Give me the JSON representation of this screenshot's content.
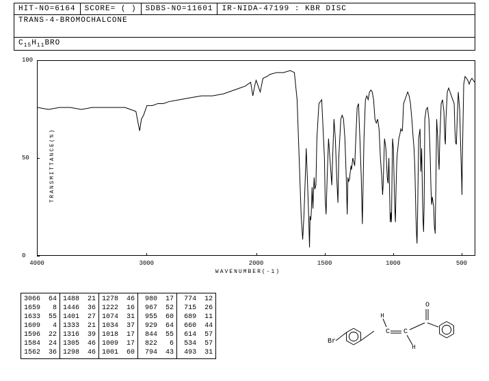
{
  "header": {
    "hit_no": "HIT-NO=6164",
    "score": "SCORE=  (  )",
    "sdbs_no": "SDBS-NO=11601",
    "ir_nida": "IR-NIDA-47199 : KBR DISC"
  },
  "compound_name": "TRANS-4-BROMOCHALCONE",
  "formula_parts": [
    "C",
    "15",
    "H",
    "11",
    "BRO"
  ],
  "chart": {
    "type": "line",
    "xlabel": "WAVENUMBER(-1)",
    "ylabel": "TRANSMITTANCE(%)",
    "xlim": [
      4000,
      400
    ],
    "ylim": [
      0,
      100
    ],
    "xticks": [
      4000,
      3000,
      2000,
      1500,
      1000,
      500
    ],
    "yticks": [
      0,
      50,
      100
    ],
    "line_color": "#000000",
    "background_color": "#ffffff",
    "border_color": "#000000",
    "line_width": 1,
    "label_fontsize": 8,
    "tick_fontsize": 9,
    "spectrum": [
      [
        4000,
        76
      ],
      [
        3900,
        75
      ],
      [
        3800,
        76
      ],
      [
        3700,
        76
      ],
      [
        3600,
        75
      ],
      [
        3500,
        76
      ],
      [
        3400,
        76
      ],
      [
        3300,
        76
      ],
      [
        3200,
        76
      ],
      [
        3150,
        75
      ],
      [
        3100,
        74
      ],
      [
        3080,
        68
      ],
      [
        3066,
        64
      ],
      [
        3050,
        70
      ],
      [
        3030,
        72
      ],
      [
        3000,
        77
      ],
      [
        2950,
        77
      ],
      [
        2900,
        78
      ],
      [
        2850,
        78
      ],
      [
        2800,
        79
      ],
      [
        2700,
        80
      ],
      [
        2600,
        81
      ],
      [
        2500,
        82
      ],
      [
        2400,
        82
      ],
      [
        2300,
        83
      ],
      [
        2200,
        85
      ],
      [
        2150,
        86
      ],
      [
        2100,
        87
      ],
      [
        2050,
        89
      ],
      [
        2030,
        82
      ],
      [
        2010,
        88
      ],
      [
        2000,
        90
      ],
      [
        1970,
        84
      ],
      [
        1950,
        91
      ],
      [
        1920,
        92
      ],
      [
        1900,
        93
      ],
      [
        1850,
        94
      ],
      [
        1800,
        94
      ],
      [
        1750,
        95
      ],
      [
        1720,
        94
      ],
      [
        1700,
        80
      ],
      [
        1680,
        40
      ],
      [
        1670,
        20
      ],
      [
        1659,
        8
      ],
      [
        1650,
        20
      ],
      [
        1640,
        40
      ],
      [
        1633,
        55
      ],
      [
        1625,
        40
      ],
      [
        1615,
        20
      ],
      [
        1609,
        4
      ],
      [
        1605,
        20
      ],
      [
        1600,
        18
      ],
      [
        1596,
        22
      ],
      [
        1590,
        35
      ],
      [
        1584,
        24
      ],
      [
        1580,
        32
      ],
      [
        1575,
        40
      ],
      [
        1570,
        34
      ],
      [
        1562,
        36
      ],
      [
        1555,
        60
      ],
      [
        1540,
        78
      ],
      [
        1520,
        80
      ],
      [
        1500,
        50
      ],
      [
        1495,
        30
      ],
      [
        1488,
        21
      ],
      [
        1480,
        40
      ],
      [
        1470,
        60
      ],
      [
        1460,
        50
      ],
      [
        1450,
        40
      ],
      [
        1446,
        36
      ],
      [
        1440,
        50
      ],
      [
        1430,
        70
      ],
      [
        1420,
        60
      ],
      [
        1410,
        40
      ],
      [
        1401,
        27
      ],
      [
        1395,
        50
      ],
      [
        1380,
        70
      ],
      [
        1370,
        72
      ],
      [
        1360,
        70
      ],
      [
        1350,
        60
      ],
      [
        1340,
        40
      ],
      [
        1333,
        21
      ],
      [
        1328,
        40
      ],
      [
        1322,
        38
      ],
      [
        1316,
        39
      ],
      [
        1312,
        42
      ],
      [
        1305,
        46
      ],
      [
        1302,
        44
      ],
      [
        1298,
        46
      ],
      [
        1292,
        50
      ],
      [
        1285,
        48
      ],
      [
        1278,
        46
      ],
      [
        1270,
        60
      ],
      [
        1260,
        76
      ],
      [
        1250,
        78
      ],
      [
        1240,
        60
      ],
      [
        1230,
        40
      ],
      [
        1225,
        25
      ],
      [
        1222,
        16
      ],
      [
        1218,
        30
      ],
      [
        1210,
        60
      ],
      [
        1200,
        80
      ],
      [
        1190,
        82
      ],
      [
        1180,
        80
      ],
      [
        1170,
        84
      ],
      [
        1160,
        85
      ],
      [
        1150,
        84
      ],
      [
        1140,
        80
      ],
      [
        1130,
        70
      ],
      [
        1120,
        68
      ],
      [
        1110,
        70
      ],
      [
        1100,
        65
      ],
      [
        1090,
        50
      ],
      [
        1080,
        40
      ],
      [
        1074,
        31
      ],
      [
        1070,
        36
      ],
      [
        1060,
        60
      ],
      [
        1050,
        55
      ],
      [
        1040,
        40
      ],
      [
        1034,
        37
      ],
      [
        1028,
        50
      ],
      [
        1022,
        30
      ],
      [
        1018,
        17
      ],
      [
        1012,
        22
      ],
      [
        1009,
        17
      ],
      [
        1005,
        40
      ],
      [
        1001,
        60
      ],
      [
        995,
        55
      ],
      [
        990,
        40
      ],
      [
        985,
        25
      ],
      [
        980,
        17
      ],
      [
        975,
        35
      ],
      [
        970,
        48
      ],
      [
        967,
        52
      ],
      [
        962,
        55
      ],
      [
        955,
        60
      ],
      [
        948,
        62
      ],
      [
        940,
        65
      ],
      [
        935,
        64
      ],
      [
        929,
        64
      ],
      [
        920,
        78
      ],
      [
        910,
        80
      ],
      [
        900,
        82
      ],
      [
        890,
        84
      ],
      [
        880,
        82
      ],
      [
        870,
        78
      ],
      [
        860,
        70
      ],
      [
        850,
        60
      ],
      [
        844,
        55
      ],
      [
        838,
        45
      ],
      [
        830,
        20
      ],
      [
        825,
        10
      ],
      [
        822,
        6
      ],
      [
        818,
        20
      ],
      [
        810,
        60
      ],
      [
        800,
        65
      ],
      [
        794,
        43
      ],
      [
        788,
        55
      ],
      [
        782,
        30
      ],
      [
        778,
        18
      ],
      [
        774,
        12
      ],
      [
        770,
        25
      ],
      [
        765,
        70
      ],
      [
        755,
        75
      ],
      [
        745,
        76
      ],
      [
        735,
        70
      ],
      [
        725,
        50
      ],
      [
        720,
        35
      ],
      [
        715,
        26
      ],
      [
        710,
        30
      ],
      [
        700,
        25
      ],
      [
        695,
        15
      ],
      [
        690,
        12
      ],
      [
        689,
        11
      ],
      [
        685,
        30
      ],
      [
        678,
        70
      ],
      [
        670,
        60
      ],
      [
        665,
        50
      ],
      [
        660,
        44
      ],
      [
        655,
        60
      ],
      [
        645,
        78
      ],
      [
        635,
        80
      ],
      [
        625,
        74
      ],
      [
        618,
        60
      ],
      [
        614,
        57
      ],
      [
        610,
        70
      ],
      [
        600,
        84
      ],
      [
        590,
        86
      ],
      [
        580,
        84
      ],
      [
        570,
        82
      ],
      [
        560,
        80
      ],
      [
        550,
        78
      ],
      [
        545,
        65
      ],
      [
        540,
        58
      ],
      [
        534,
        57
      ],
      [
        528,
        70
      ],
      [
        520,
        84
      ],
      [
        510,
        75
      ],
      [
        500,
        50
      ],
      [
        495,
        38
      ],
      [
        493,
        31
      ],
      [
        490,
        50
      ],
      [
        480,
        88
      ],
      [
        470,
        92
      ],
      [
        460,
        91
      ],
      [
        450,
        90
      ],
      [
        440,
        88
      ],
      [
        430,
        90
      ],
      [
        420,
        91
      ],
      [
        410,
        90
      ],
      [
        400,
        89
      ]
    ]
  },
  "peaks_table": {
    "columns": [
      [
        [
          3066,
          64
        ],
        [
          1659,
          8
        ],
        [
          1633,
          55
        ],
        [
          1609,
          4
        ],
        [
          1596,
          22
        ],
        [
          1584,
          24
        ],
        [
          1562,
          36
        ]
      ],
      [
        [
          1488,
          21
        ],
        [
          1446,
          36
        ],
        [
          1401,
          27
        ],
        [
          1333,
          21
        ],
        [
          1316,
          39
        ],
        [
          1305,
          46
        ],
        [
          1298,
          46
        ]
      ],
      [
        [
          1278,
          46
        ],
        [
          1222,
          16
        ],
        [
          1074,
          31
        ],
        [
          1034,
          37
        ],
        [
          1018,
          17
        ],
        [
          1009,
          17
        ],
        [
          1001,
          60
        ]
      ],
      [
        [
          980,
          17
        ],
        [
          967,
          52
        ],
        [
          955,
          60
        ],
        [
          929,
          64
        ],
        [
          844,
          55
        ],
        [
          822,
          6
        ],
        [
          794,
          43
        ]
      ],
      [
        [
          774,
          12
        ],
        [
          715,
          26
        ],
        [
          689,
          11
        ],
        [
          660,
          44
        ],
        [
          614,
          57
        ],
        [
          534,
          57
        ],
        [
          493,
          31
        ]
      ]
    ],
    "font_size": 10,
    "border_color": "#000000"
  },
  "structure": {
    "label_br": "Br",
    "label_h1": "H",
    "label_h2": "H",
    "label_o": "O",
    "c_eq_c": "C=C",
    "line_color": "#000000"
  }
}
